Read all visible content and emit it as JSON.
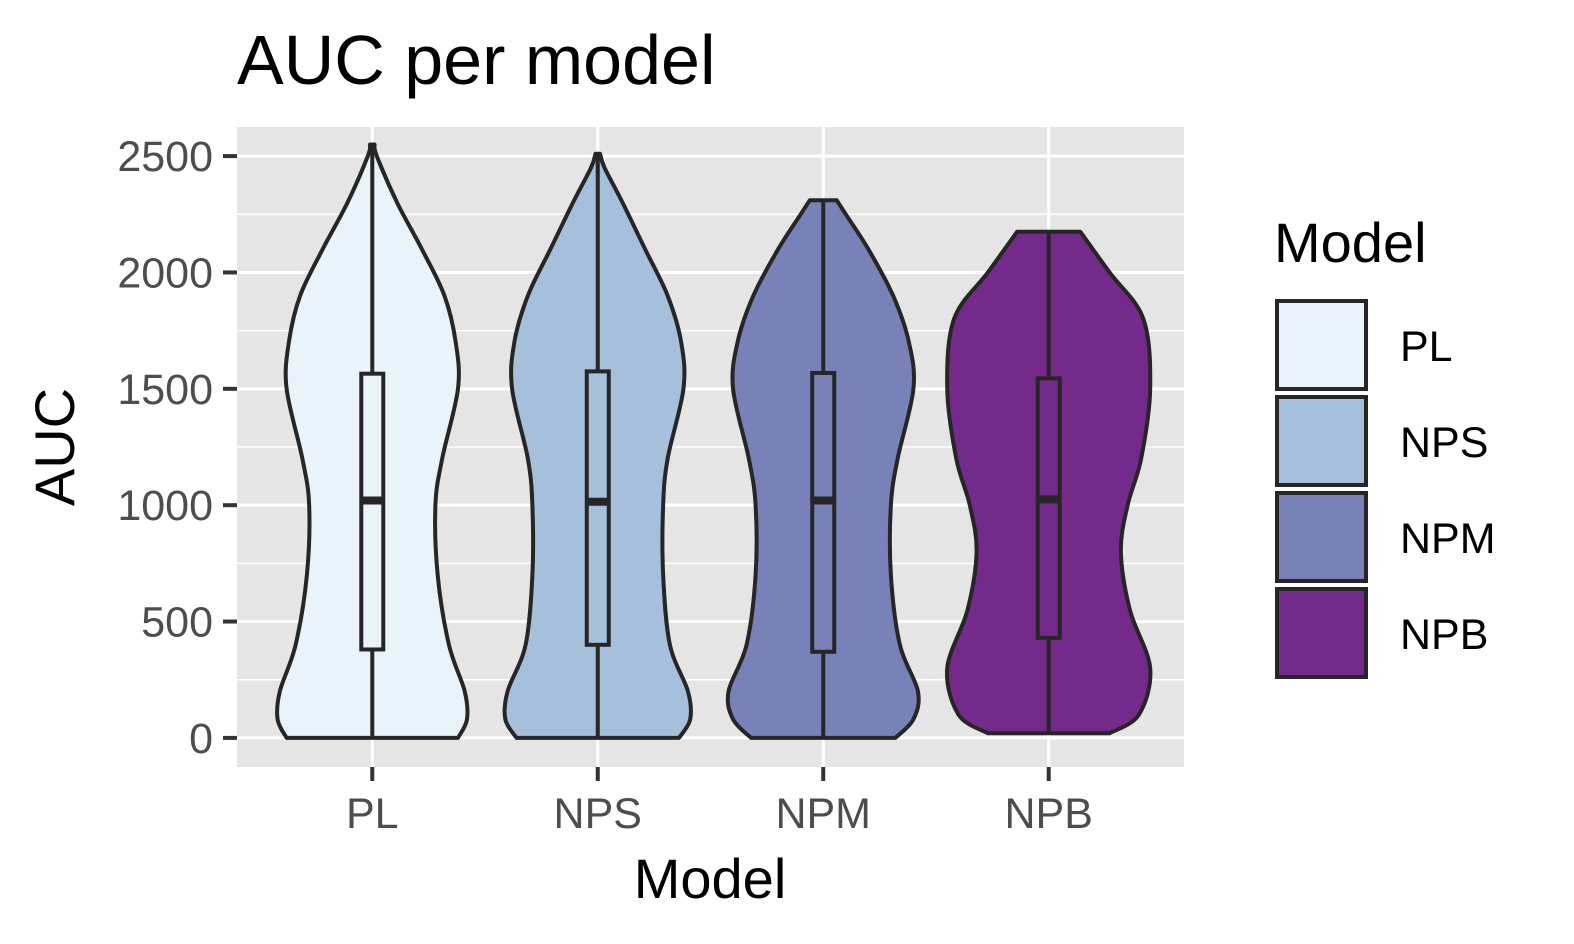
{
  "chart_data": {
    "type": "violin",
    "title": "AUC per model",
    "xlabel": "Model",
    "ylabel": "AUC",
    "ylim": [
      -125,
      2625
    ],
    "yticks": [
      0,
      500,
      1000,
      1500,
      2000,
      2500
    ],
    "ytick_labels": [
      "0",
      "500",
      "1000",
      "1500",
      "2000",
      "2500"
    ],
    "categories": [
      "PL",
      "NPS",
      "NPM",
      "NPB"
    ],
    "grid": true,
    "legend": {
      "title": "Model",
      "position": "right",
      "entries": [
        "PL",
        "NPS",
        "NPM",
        "NPB"
      ]
    },
    "series": [
      {
        "name": "PL",
        "color": "#e8f4f9",
        "min": 0,
        "q1": 380,
        "median": 1020,
        "q3": 1565,
        "max": 2550,
        "density": [
          [
            0,
            0.38
          ],
          [
            80,
            0.42
          ],
          [
            200,
            0.41
          ],
          [
            400,
            0.34
          ],
          [
            700,
            0.29
          ],
          [
            1000,
            0.28
          ],
          [
            1200,
            0.31
          ],
          [
            1500,
            0.38
          ],
          [
            1700,
            0.37
          ],
          [
            1900,
            0.32
          ],
          [
            2100,
            0.22
          ],
          [
            2300,
            0.11
          ],
          [
            2500,
            0.02
          ],
          [
            2550,
            0.01
          ]
        ]
      },
      {
        "name": "NPS",
        "color": "#a6c0dc",
        "min": 0,
        "q1": 400,
        "median": 1015,
        "q3": 1575,
        "max": 2510,
        "density": [
          [
            0,
            0.36
          ],
          [
            80,
            0.41
          ],
          [
            200,
            0.4
          ],
          [
            400,
            0.32
          ],
          [
            700,
            0.29
          ],
          [
            1000,
            0.29
          ],
          [
            1200,
            0.31
          ],
          [
            1500,
            0.38
          ],
          [
            1700,
            0.37
          ],
          [
            1900,
            0.31
          ],
          [
            2100,
            0.21
          ],
          [
            2300,
            0.11
          ],
          [
            2450,
            0.03
          ],
          [
            2510,
            0.01
          ]
        ]
      },
      {
        "name": "NPM",
        "color": "#7882b8",
        "min": 0,
        "q1": 370,
        "median": 1020,
        "q3": 1568,
        "max": 2310,
        "density": [
          [
            0,
            0.32
          ],
          [
            80,
            0.4
          ],
          [
            200,
            0.42
          ],
          [
            400,
            0.34
          ],
          [
            700,
            0.3
          ],
          [
            1000,
            0.3
          ],
          [
            1200,
            0.33
          ],
          [
            1500,
            0.4
          ],
          [
            1700,
            0.38
          ],
          [
            1900,
            0.31
          ],
          [
            2100,
            0.2
          ],
          [
            2250,
            0.1
          ],
          [
            2310,
            0.06
          ]
        ]
      },
      {
        "name": "NPB",
        "color": "#742a8a",
        "min": 20,
        "q1": 430,
        "median": 1025,
        "q3": 1545,
        "max": 2175,
        "density": [
          [
            20,
            0.27
          ],
          [
            100,
            0.4
          ],
          [
            300,
            0.45
          ],
          [
            550,
            0.36
          ],
          [
            800,
            0.32
          ],
          [
            1000,
            0.35
          ],
          [
            1200,
            0.41
          ],
          [
            1500,
            0.45
          ],
          [
            1800,
            0.42
          ],
          [
            2000,
            0.27
          ],
          [
            2175,
            0.14
          ]
        ]
      }
    ]
  }
}
